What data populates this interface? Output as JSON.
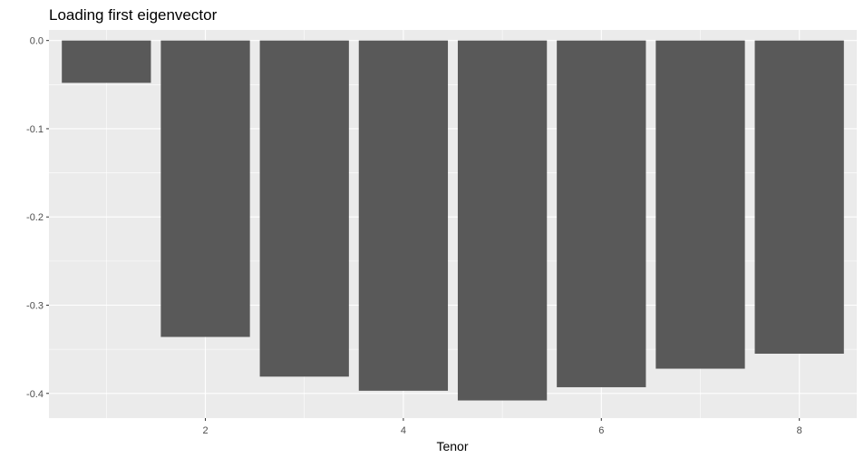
{
  "chart_data": {
    "type": "bar",
    "title": "Loading first eigenvector",
    "xlabel": "Tenor",
    "ylabel": "",
    "x": [
      1,
      2,
      3,
      4,
      5,
      6,
      7,
      8
    ],
    "values": [
      -0.048,
      -0.336,
      -0.381,
      -0.397,
      -0.408,
      -0.393,
      -0.372,
      -0.355
    ],
    "xlim": [
      0.42,
      8.58
    ],
    "ylim": [
      -0.428,
      0.012
    ],
    "x_ticks": [
      2,
      4,
      6,
      8
    ],
    "x_tick_labels": [
      "2",
      "4",
      "6",
      "8"
    ],
    "y_ticks": [
      0.0,
      -0.1,
      -0.2,
      -0.3,
      -0.4
    ],
    "y_tick_labels": [
      "0.0",
      "-0.1",
      "-0.2",
      "-0.3",
      "-0.4"
    ],
    "grid": true,
    "legend": "none",
    "colors": {
      "panel_background": "#ebebeb",
      "grid_major": "#ffffff",
      "bar_fill": "#595959",
      "tick_text": "#4d4d4d",
      "tick_mark": "#333333"
    }
  }
}
